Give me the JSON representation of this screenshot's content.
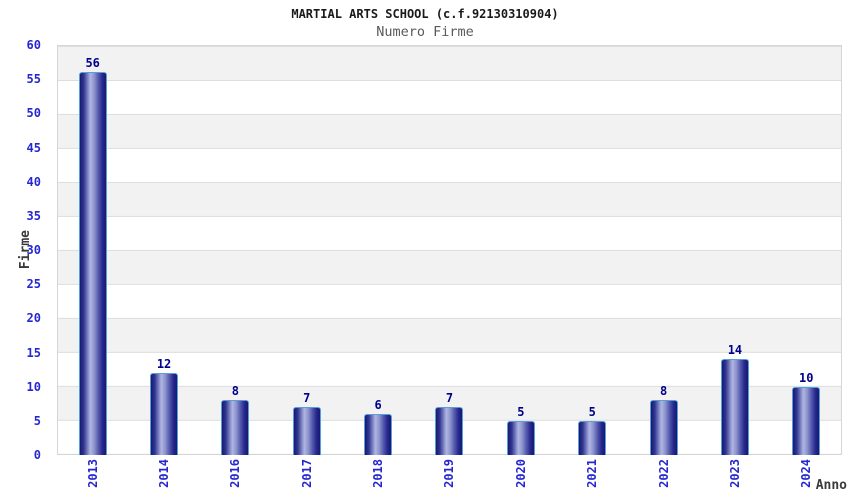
{
  "header": {
    "title": "MARTIAL ARTS SCHOOL (c.f.92130310904)",
    "subtitle": "Numero Firme"
  },
  "chart_data": {
    "type": "bar",
    "title": "MARTIAL ARTS SCHOOL (c.f.92130310904)",
    "subtitle": "Numero Firme",
    "categories": [
      "2013",
      "2014",
      "2016",
      "2017",
      "2018",
      "2019",
      "2020",
      "2021",
      "2022",
      "2023",
      "2024"
    ],
    "values": [
      56,
      12,
      8,
      7,
      6,
      7,
      5,
      5,
      8,
      14,
      10
    ],
    "xlabel": "Anno",
    "ylabel": "Firme",
    "ylim": [
      0,
      60
    ],
    "yticks": [
      0,
      5,
      10,
      15,
      20,
      25,
      30,
      35,
      40,
      45,
      50,
      55,
      60
    ],
    "grid": "horizontal alternating bands, gray line each 5 units",
    "legend_position": "none",
    "colors": {
      "bar_dark": "#191970",
      "bar_light": "#b0b6e2",
      "bar_border": "#56a0d8",
      "value_label": "#00008b",
      "tick_label": "#2727cf",
      "band_gray": "#f2f2f2",
      "grid_line": "#dedede",
      "axis_title": "#3a3a3a"
    }
  }
}
